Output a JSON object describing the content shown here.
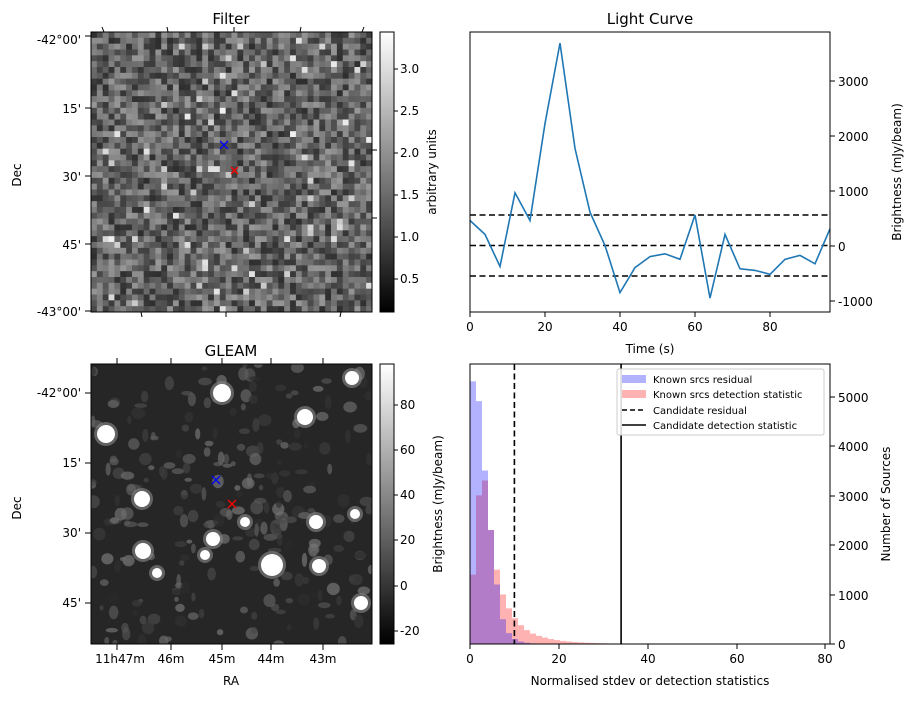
{
  "panels": {
    "filter": {
      "title": "Filter",
      "ylabel": "Dec",
      "dec_ticks": [
        "-42°00'",
        "15'",
        "30'",
        "45'",
        "-43°00'"
      ],
      "colorbar": {
        "label": "arbitrary units",
        "ticks": [
          "3.0",
          "2.5",
          "2.0",
          "1.5",
          "1.0",
          "0.5"
        ],
        "range": [
          0.1,
          3.4
        ]
      }
    },
    "gleam": {
      "title": "GLEAM",
      "ylabel": "Dec",
      "xlabel": "RA",
      "dec_ticks": [
        "-42°00'",
        "15'",
        "30'",
        "45'"
      ],
      "ra_ticks": [
        "11h47m",
        "46m",
        "45m",
        "44m",
        "43m"
      ],
      "colorbar": {
        "label": "Brightness (mJy/beam)",
        "ticks": [
          "80",
          "60",
          "40",
          "20",
          "0",
          "-20"
        ],
        "range": [
          -27,
          97
        ]
      }
    },
    "lightcurve": {
      "title": "Light Curve",
      "xlabel": "Time (s)",
      "ylabel": "Brightness (mJy/beam)",
      "xticks": [
        "0",
        "20",
        "40",
        "60",
        "80"
      ],
      "yticks": [
        "3000",
        "2000",
        "1000",
        "0",
        "-1000"
      ]
    },
    "histogram": {
      "xlabel": "Normalised stdev or detection statistics",
      "ylabel": "Number of Sources",
      "xticks": [
        "0",
        "20",
        "40",
        "60",
        "80"
      ],
      "yticks": [
        "5000",
        "4000",
        "3000",
        "2000",
        "1000",
        "0"
      ],
      "legend": [
        "Known srcs residual",
        "Known srcs detection statistic",
        "Candidate residual",
        "Candidate detection statistic"
      ]
    }
  },
  "chart_data": [
    {
      "type": "heatmap",
      "title": "Filter",
      "ylabel": "Dec",
      "markers": [
        {
          "symbol": "x",
          "color": "#0000ff"
        },
        {
          "symbol": "x",
          "color": "#ff0000"
        }
      ],
      "colorbar_range": [
        0.1,
        3.4
      ]
    },
    {
      "type": "line",
      "title": "Light Curve",
      "xlabel": "Time (s)",
      "ylabel": "Brightness (mJy/beam)",
      "x": [
        0,
        4,
        8,
        12,
        16,
        20,
        24,
        28,
        32,
        36,
        40,
        44,
        48,
        52,
        56,
        60,
        64,
        68,
        72,
        76,
        80,
        84,
        88,
        92,
        96
      ],
      "y": [
        450,
        200,
        -380,
        950,
        450,
        2200,
        3650,
        1750,
        600,
        0,
        -850,
        -400,
        -200,
        -150,
        -250,
        550,
        -950,
        200,
        -420,
        -450,
        -520,
        -250,
        -180,
        -330,
        300
      ],
      "hlines": [
        550,
        0,
        -550
      ],
      "xlim": [
        0,
        96
      ],
      "ylim": [
        -1200,
        3850
      ]
    },
    {
      "type": "bar",
      "title": "",
      "xlabel": "Normalised stdev or detection statistics",
      "ylabel": "Number of Sources",
      "bin_width": 1.35,
      "series": [
        {
          "name": "Known srcs residual",
          "color": "#0000ff",
          "values": [
            5300,
            4900,
            3500,
            2300,
            1200,
            500,
            220,
            100,
            50,
            25,
            12,
            6,
            3,
            2,
            1
          ]
        },
        {
          "name": "Known srcs detection statistic",
          "color": "#ff0000",
          "values": [
            1400,
            3000,
            3300,
            2300,
            1500,
            1000,
            720,
            520,
            380,
            280,
            210,
            165,
            130,
            100,
            80,
            62,
            50,
            40,
            32,
            26,
            21,
            17,
            14,
            11,
            9,
            7,
            6,
            5,
            4,
            3,
            3,
            2,
            2,
            2,
            1,
            1,
            1,
            1,
            1,
            1,
            1,
            1,
            1,
            1,
            1,
            1,
            1,
            1,
            1,
            1,
            1,
            1,
            1,
            1,
            1,
            1,
            1
          ]
        }
      ],
      "vlines": [
        {
          "name": "Candidate residual",
          "x": 10,
          "style": "dashed"
        },
        {
          "name": "Candidate detection statistic",
          "x": 34,
          "style": "solid"
        }
      ],
      "xlim": [
        0,
        81
      ],
      "ylim": [
        0,
        5650
      ]
    },
    {
      "type": "heatmap",
      "title": "GLEAM",
      "xlabel": "RA",
      "ylabel": "Dec",
      "markers": [
        {
          "symbol": "x",
          "color": "#0000ff"
        },
        {
          "symbol": "x",
          "color": "#ff0000"
        }
      ],
      "colorbar_range": [
        -27,
        97
      ]
    }
  ]
}
